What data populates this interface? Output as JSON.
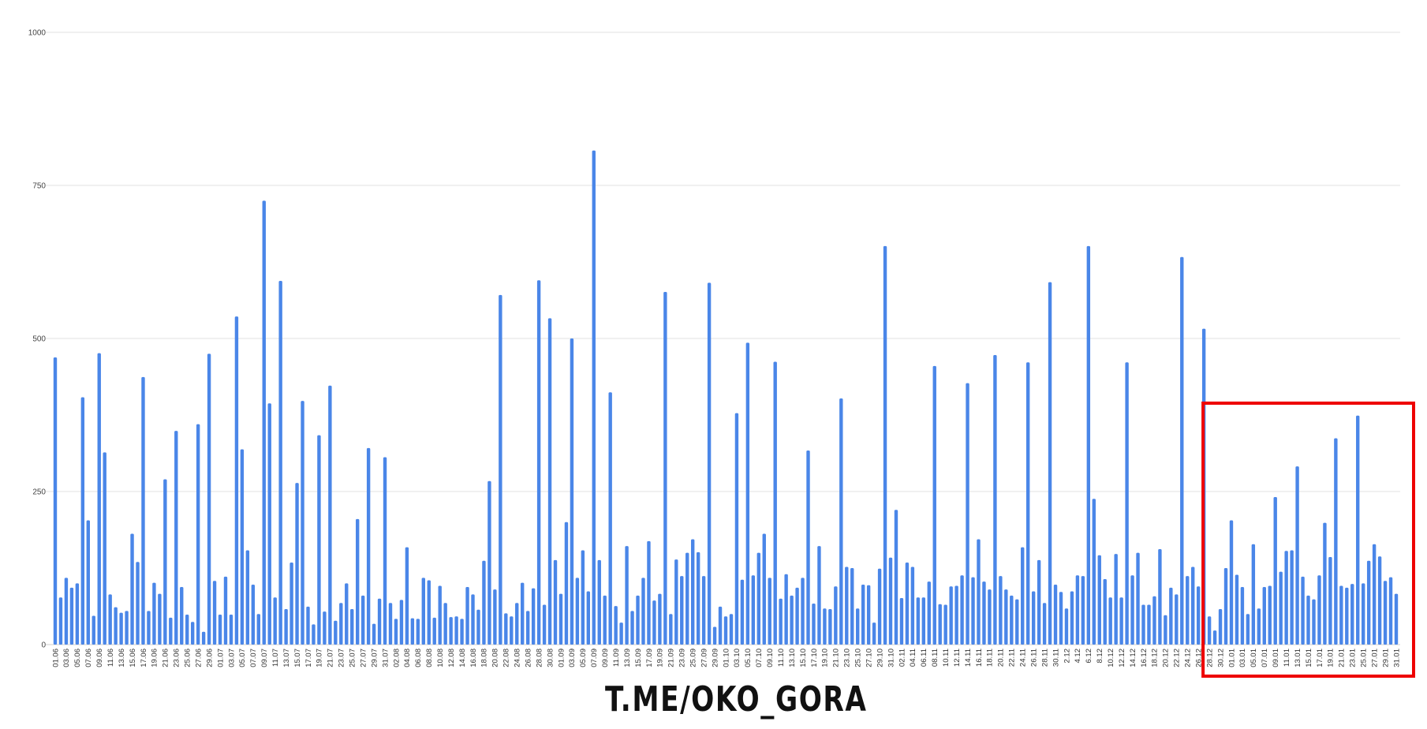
{
  "watermark": "T.ME/OKO_GORA",
  "chart_data": {
    "type": "bar",
    "title": "",
    "xlabel": "",
    "ylabel": "",
    "ylim": [
      0,
      1000
    ],
    "yticks": [
      "0",
      "250",
      "500",
      "750",
      "1000"
    ],
    "grid": true,
    "bar_color": "#4a86e8",
    "grid_color": "#e0e0e0",
    "highlight_box": {
      "color": "#ee0000",
      "from": "28.12",
      "to": "31.01"
    },
    "categories": [
      "01.06",
      "02.06",
      "03.06",
      "04.06",
      "05.06",
      "06.06",
      "07.06",
      "08.06",
      "09.06",
      "10.06",
      "11.06",
      "12.06",
      "13.06",
      "14.06",
      "15.06",
      "16.06",
      "17.06",
      "18.06",
      "19.06",
      "20.06",
      "21.06",
      "22.06",
      "23.06",
      "24.06",
      "25.06",
      "26.06",
      "27.06",
      "28.06",
      "29.06",
      "30.06",
      "01.07",
      "02.07",
      "03.07",
      "04.07",
      "05.07",
      "06.07",
      "07.07",
      "08.07",
      "09.07",
      "10.07",
      "11.07",
      "12.07",
      "13.07",
      "14.07",
      "15.07",
      "16.07",
      "17.07",
      "18.07",
      "19.07",
      "20.07",
      "21.07",
      "22.07",
      "23.07",
      "24.07",
      "25.07",
      "26.07",
      "27.07",
      "28.07",
      "29.07",
      "30.07",
      "31.07",
      "01.08",
      "02.08",
      "03.08",
      "04.08",
      "05.08",
      "06.08",
      "07.08",
      "08.08",
      "09.08",
      "10.08",
      "11.08",
      "12.08",
      "13.08",
      "14.08",
      "15.08",
      "16.08",
      "17.08",
      "18.08",
      "19.08",
      "20.08",
      "21.08",
      "22.08",
      "23.08",
      "24.08",
      "25.08",
      "26.08",
      "27.08",
      "28.08",
      "29.08",
      "30.08",
      "31.08",
      "01.09",
      "02.09",
      "03.09",
      "04.09",
      "05.09",
      "06.09",
      "07.09",
      "08.09",
      "09.09",
      "10.09",
      "11.09",
      "12.09",
      "13.09",
      "14.09",
      "15.09",
      "16.09",
      "17.09",
      "18.09",
      "19.09",
      "20.09",
      "21.09",
      "22.09",
      "23.09",
      "24.09",
      "25.09",
      "26.09",
      "27.09",
      "28.09",
      "29.09",
      "30.09",
      "01.10",
      "02.10",
      "03.10",
      "04.10",
      "05.10",
      "06.10",
      "07.10",
      "08.10",
      "09.10",
      "10.10",
      "11.10",
      "12.10",
      "13.10",
      "14.10",
      "15.10",
      "16.10",
      "17.10",
      "18.10",
      "19.10",
      "20.10",
      "21.10",
      "22.10",
      "23.10",
      "24.10",
      "25.10",
      "26.10",
      "27.10",
      "28.10",
      "29.10",
      "30.10",
      "31.10",
      "01.11",
      "02.11",
      "03.11",
      "04.11",
      "05.11",
      "06.11",
      "07.11",
      "08.11",
      "09.11",
      "10.11",
      "11.11",
      "12.11",
      "13.11",
      "14.11",
      "15.11",
      "16.11",
      "17.11",
      "18.11",
      "19.11",
      "20.11",
      "21.11",
      "22.11",
      "23.11",
      "24.11",
      "25.11",
      "26.11",
      "27.11",
      "28.11",
      "29.11",
      "30.11",
      "01.12",
      "2.12",
      "03.12",
      "4.12",
      "05.12",
      "6.12",
      "07.12",
      "8.12",
      "09.12",
      "10.12",
      "11.12",
      "12.12",
      "13.12",
      "14.12",
      "15.12",
      "16.12",
      "17.12",
      "18.12",
      "19.12",
      "20.12",
      "21.12",
      "22.12",
      "23.12",
      "24.12",
      "25.12",
      "26.12",
      "27.12",
      "28.12",
      "29.12",
      "30.12",
      "31.12",
      "01.01",
      "02.01",
      "03.01",
      "04.01",
      "05.01",
      "06.01",
      "07.01",
      "08.01",
      "09.01",
      "10.01",
      "11.01",
      "12.01",
      "13.01",
      "14.01",
      "15.01",
      "16.01",
      "17.01",
      "18.01",
      "19.01",
      "20.01",
      "21.01",
      "22.01",
      "23.01",
      "24.01",
      "25.01",
      "26.01",
      "27.01",
      "28.01",
      "29.01",
      "30.01",
      "31.01"
    ],
    "values": [
      469,
      77,
      109,
      93,
      100,
      404,
      203,
      47,
      476,
      314,
      82,
      61,
      52,
      55,
      181,
      135,
      437,
      55,
      101,
      83,
      270,
      44,
      349,
      94,
      49,
      37,
      360,
      21,
      475,
      104,
      49,
      111,
      49,
      536,
      319,
      154,
      98,
      50,
      725,
      394,
      77,
      594,
      58,
      134,
      264,
      398,
      62,
      33,
      342,
      54,
      423,
      39,
      68,
      100,
      58,
      205,
      80,
      321,
      34,
      75,
      306,
      68,
      42,
      73,
      159,
      43,
      42,
      109,
      105,
      44,
      96,
      68,
      45,
      46,
      42,
      94,
      82,
      57,
      137,
      267,
      90,
      571,
      51,
      46,
      68,
      101,
      55,
      92,
      595,
      65,
      533,
      138,
      83,
      200,
      500,
      109,
      154,
      87,
      807,
      138,
      80,
      412,
      63,
      36,
      161,
      55,
      80,
      109,
      169,
      72,
      83,
      576,
      50,
      139,
      112,
      150,
      172,
      151,
      112,
      591,
      29,
      62,
      46,
      50,
      378,
      106,
      493,
      113,
      150,
      181,
      109,
      462,
      75,
      115,
      80,
      93,
      109,
      317,
      67,
      161,
      59,
      58,
      95,
      402,
      127,
      125,
      59,
      98,
      97,
      36,
      124,
      651,
      142,
      220,
      76,
      134,
      127,
      77,
      77,
      103,
      455,
      66,
      65,
      95,
      96,
      113,
      427,
      110,
      172,
      103,
      90,
      473,
      112,
      90,
      80,
      74,
      159,
      461,
      87,
      138,
      68,
      592,
      98,
      86,
      59,
      87,
      113,
      112,
      651,
      238,
      146,
      107,
      77,
      148,
      77,
      461,
      113,
      150,
      65,
      65,
      79,
      156,
      48,
      93,
      82,
      633,
      112,
      127,
      95,
      516,
      46,
      23,
      58,
      125,
      203,
      114,
      94,
      50,
      164,
      59,
      94,
      96,
      241,
      119,
      153,
      154,
      291,
      111,
      80,
      74,
      113,
      199,
      143,
      337,
      96,
      93,
      99,
      374,
      100,
      137,
      164,
      144,
      104,
      110,
      83
    ]
  }
}
